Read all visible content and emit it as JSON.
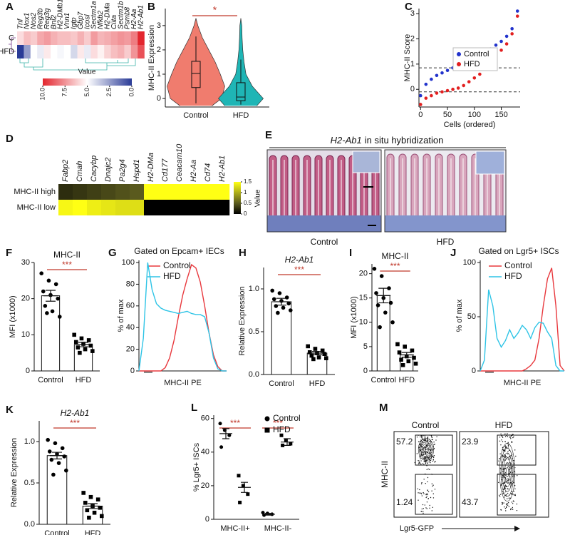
{
  "chart_data": [
    {
      "panel": "A",
      "type": "heatmap",
      "colormap": "red-white-blue",
      "legend_title": "Value",
      "columns": [
        "Tnf",
        "Nox1",
        "Nos2",
        "Reg3b",
        "Reg3g",
        "Bnl2",
        "H2-DMb1",
        "Vnn1",
        "Igtp",
        "Gbp7",
        "Icosl",
        "Sectm1a",
        "Nfkb2",
        "H2-DMa",
        "Ciita",
        "Sectm1b",
        "Psmb8",
        "H2-Aa",
        "H2-Ab1"
      ],
      "rows": [
        "C",
        "HFD"
      ],
      "values": [
        [
          5.8,
          6.5,
          6.2,
          7,
          7.3,
          6.8,
          6.5,
          6.5,
          6.3,
          6.8,
          6.2,
          7.3,
          6.7,
          6.9,
          7.2,
          7.5,
          7.3,
          8,
          10
        ],
        [
          0,
          2.5,
          5,
          4.5,
          5.5,
          5,
          4.8,
          5,
          4,
          5.5,
          4.5,
          5.8,
          5.3,
          6,
          6.5,
          6.8,
          6.2,
          7.5,
          9
        ]
      ],
      "clim": [
        0,
        10
      ],
      "cticks": [
        {
          "value": 10,
          "label": "10.0"
        },
        {
          "value": 7.5,
          "label": "7.5"
        },
        {
          "value": 5,
          "label": "5.0"
        },
        {
          "value": 2.5,
          "label": "2.5"
        },
        {
          "value": 0,
          "label": "0.0"
        }
      ]
    },
    {
      "panel": "B",
      "type": "violin",
      "ylabel": "MHC-II Expression",
      "categories": [
        "Control",
        "HFD"
      ],
      "significance": "*",
      "ylim": [
        -0.35,
        3.7
      ],
      "yticks": [
        0,
        1,
        2,
        3
      ],
      "density_y": [
        -0.3,
        0,
        0.5,
        1,
        1.5,
        2,
        2.5,
        3,
        3.3
      ],
      "series": [
        {
          "name": "Control",
          "color": "#f07c6e",
          "density": [
            25,
            40,
            45,
            38,
            30,
            20,
            10,
            3,
            0
          ],
          "q1": 0.45,
          "median": 1.03,
          "q3": 1.53,
          "whisker_low": -0.2,
          "whisker_high": 2.55
        },
        {
          "name": "HFD",
          "color": "#1fb5b5",
          "density": [
            25,
            35,
            18,
            8,
            5,
            3,
            2,
            1.5,
            0
          ],
          "q1": -0.09,
          "median": 0.06,
          "q3": 0.65,
          "whisker_low": -0.25,
          "whisker_high": 1.6
        }
      ]
    },
    {
      "panel": "C",
      "type": "scatter",
      "ylabel": "MHC-II Score",
      "xlabel": "Cells (ordered)",
      "xlim": [
        -3,
        185
      ],
      "xticks": [
        0,
        50,
        100,
        150
      ],
      "ylim": [
        -0.7,
        3.2
      ],
      "yticks": [
        0,
        1,
        2,
        3
      ],
      "hlines": [
        0.85,
        -0.1
      ],
      "x": [
        0,
        10,
        20,
        30,
        40,
        50,
        60,
        70,
        80,
        90,
        100,
        110,
        120,
        130,
        140,
        150,
        160,
        170,
        180
      ],
      "series": [
        {
          "name": "Control",
          "color": "#2233cc",
          "values": [
            -0.25,
            0.2,
            0.4,
            0.55,
            0.65,
            0.75,
            0.85,
            0.95,
            1.05,
            1.15,
            1.25,
            1.35,
            1.5,
            1.6,
            1.75,
            1.9,
            2.1,
            2.4,
            3.1
          ]
        },
        {
          "name": "HFD",
          "color": "#e21f1f",
          "values": [
            -0.6,
            -0.35,
            -0.25,
            -0.15,
            -0.1,
            -0.05,
            0,
            0.05,
            0.15,
            0.3,
            0.45,
            0.6,
            0.85,
            1.05,
            1.3,
            1.55,
            1.8,
            2.2,
            2.9
          ]
        }
      ]
    },
    {
      "panel": "D",
      "type": "heatmap",
      "colormap": "black-olive-yellow",
      "legend_title": "Value",
      "columns": [
        "Fabp2",
        "Cmah",
        "Cacybp",
        "Dnajc2",
        "Pa2g4",
        "Hspd1",
        "H2-DMa",
        "Cd177",
        "Ceacam10",
        "H2-Aa",
        "Cd74",
        "H2-Ab1"
      ],
      "rows": [
        "MHC-II high",
        "MHC-II low"
      ],
      "values": [
        [
          0.25,
          0.3,
          0.35,
          0.4,
          0.45,
          0.5,
          1.5,
          1.5,
          1.5,
          1.5,
          1.5,
          1.5
        ],
        [
          1.45,
          1.5,
          1.4,
          1.35,
          1.3,
          1.3,
          0,
          0,
          0,
          0,
          0,
          0
        ]
      ],
      "clim": [
        0,
        1.5
      ],
      "cticks": [
        0,
        0.5,
        1,
        1.5
      ]
    },
    {
      "panel": "E",
      "type": "image",
      "title_gene": "H2-Ab1",
      "title_rest": "in situ hybridization",
      "labels": [
        "Control",
        "HFD"
      ]
    },
    {
      "panel": "F",
      "type": "bar",
      "title": "MHC-II",
      "ylabel": "MFI (x1000)",
      "categories": [
        "Control",
        "HFD"
      ],
      "significance": "***",
      "ylim": [
        0,
        30
      ],
      "yticks": [
        0,
        10,
        20,
        30
      ],
      "values": [
        20.8,
        7.3
      ],
      "errors": [
        1.5,
        0.6
      ],
      "markers": [
        "circle",
        "square"
      ],
      "points": [
        [
          27,
          25,
          24,
          22,
          21,
          20,
          18,
          16.5,
          15,
          16
        ],
        [
          10,
          9,
          8.5,
          8,
          7.5,
          7,
          6.5,
          6,
          5.5,
          5
        ]
      ]
    },
    {
      "panel": "G",
      "type": "line",
      "title": "Gated on Epcam+ IECs",
      "ylabel": "% of max",
      "xlabel": "MHC-II PE",
      "xlim": [
        0,
        100
      ],
      "ylim": [
        0,
        102
      ],
      "yticks": [
        0,
        20,
        40,
        60,
        80,
        100
      ],
      "x": [
        0,
        5,
        10,
        15,
        20,
        25,
        30,
        35,
        40,
        45,
        50,
        55,
        60,
        65,
        70,
        75,
        80,
        85,
        90,
        95,
        100
      ],
      "series": [
        {
          "name": "Control",
          "color": "#e8383d",
          "values": [
            0,
            0,
            0,
            0,
            0,
            0,
            3,
            12,
            28,
            50,
            70,
            85,
            98,
            95,
            82,
            60,
            35,
            15,
            4,
            0,
            0
          ]
        },
        {
          "name": "HFD",
          "color": "#2ec4e6",
          "values": [
            0,
            30,
            100,
            75,
            62,
            58,
            56,
            55,
            54,
            53,
            54,
            55,
            53,
            52,
            52,
            50,
            35,
            12,
            2,
            0,
            0
          ]
        }
      ]
    },
    {
      "panel": "H",
      "type": "bar",
      "title": "H2-Ab1",
      "title_style": "italic",
      "ylabel": "Relative Expression",
      "categories": [
        "Control",
        "HFD"
      ],
      "significance": "***",
      "ylim": [
        0,
        1.25
      ],
      "yticks": [
        {
          "value": 0,
          "label": "0.0"
        },
        {
          "value": 0.5,
          "label": "0.5"
        },
        {
          "value": 1,
          "label": "1.0"
        }
      ],
      "values": [
        0.85,
        0.25
      ],
      "errors": [
        0.04,
        0.02
      ],
      "markers": [
        "circle",
        "square"
      ],
      "points": [
        [
          0.98,
          0.95,
          0.9,
          0.88,
          0.86,
          0.83,
          0.8,
          0.78,
          0.75,
          0.72
        ],
        [
          0.33,
          0.3,
          0.28,
          0.26,
          0.25,
          0.24,
          0.22,
          0.2,
          0.19,
          0.18
        ]
      ]
    },
    {
      "panel": "I",
      "type": "bar",
      "title": "MHC-II",
      "ylabel": "MFI (x1000)",
      "categories": [
        "Control",
        "HFD"
      ],
      "significance": "***",
      "ylim": [
        0,
        22
      ],
      "yticks": [
        0,
        5,
        10,
        15,
        20
      ],
      "values": [
        15.5,
        3.3
      ],
      "errors": [
        1.5,
        0.5
      ],
      "markers": [
        "circle",
        "square"
      ],
      "points": [
        [
          21,
          19.5,
          17,
          16,
          15,
          14,
          13.5,
          12,
          10,
          9
        ],
        [
          5.5,
          5,
          4.2,
          3.8,
          3,
          2.7,
          2.3,
          2,
          1.5,
          1.2
        ]
      ]
    },
    {
      "panel": "J",
      "type": "line",
      "title": "Gated on Lgr5+ ISCs",
      "ylabel": "% of max",
      "xlabel": "MHC-II PE",
      "xlim": [
        0,
        100
      ],
      "ylim": [
        0,
        102
      ],
      "yticks": [
        0,
        50,
        100
      ],
      "x": [
        0,
        5,
        10,
        15,
        20,
        25,
        30,
        35,
        40,
        45,
        50,
        55,
        60,
        65,
        70,
        75,
        80,
        85,
        90,
        95,
        100
      ],
      "series": [
        {
          "name": "Control",
          "color": "#e8383d",
          "values": [
            0,
            0,
            0,
            0,
            0,
            0,
            0,
            0,
            0,
            0,
            0,
            2,
            5,
            10,
            30,
            60,
            85,
            95,
            60,
            5,
            0
          ]
        },
        {
          "name": "HFD",
          "color": "#2ec4e6",
          "values": [
            0,
            10,
            75,
            60,
            30,
            22,
            28,
            38,
            30,
            35,
            42,
            38,
            30,
            40,
            45,
            44,
            36,
            30,
            5,
            0,
            0
          ]
        }
      ]
    },
    {
      "panel": "K",
      "type": "bar",
      "title": "H2-Ab1",
      "title_style": "italic",
      "ylabel": "Relative Expression",
      "categories": [
        "Control",
        "HFD"
      ],
      "significance": "***",
      "ylim": [
        0,
        1.25
      ],
      "yticks": [
        {
          "value": 0,
          "label": "0.0"
        },
        {
          "value": 0.5,
          "label": "0.5"
        },
        {
          "value": 1,
          "label": "1.0"
        }
      ],
      "values": [
        0.83,
        0.22
      ],
      "errors": [
        0.04,
        0.03
      ],
      "markers": [
        "circle",
        "square"
      ],
      "points": [
        [
          1.02,
          0.98,
          0.92,
          0.88,
          0.85,
          0.82,
          0.78,
          0.74,
          0.65,
          0.6
        ],
        [
          0.38,
          0.33,
          0.3,
          0.26,
          0.22,
          0.2,
          0.17,
          0.14,
          0.1,
          0.08
        ]
      ]
    },
    {
      "panel": "L",
      "type": "dot",
      "ylabel": "% Lgr5+ ISCs",
      "categories": [
        "MHC-II+",
        "MHC-II-"
      ],
      "significance": [
        "***",
        "***"
      ],
      "ylim": [
        0,
        62
      ],
      "yticks": [
        0,
        20,
        40,
        60
      ],
      "series": [
        {
          "name": "Control",
          "marker": "circle",
          "values": [
            51,
            3
          ],
          "errors": [
            3,
            0.5
          ],
          "points": [
            [
              57,
              53,
              50,
              43
            ],
            [
              4,
              3.5,
              3,
              2.5
            ]
          ]
        },
        {
          "name": "HFD",
          "marker": "square",
          "values": [
            19,
            46
          ],
          "errors": [
            3,
            2
          ],
          "points": [
            [
              26,
              20,
              15,
              10
            ],
            [
              50,
              47,
              45,
              44
            ]
          ]
        }
      ]
    },
    {
      "panel": "M",
      "type": "flow",
      "ylabel": "MHC-II",
      "xlabel": "Lgr5-GFP",
      "panels": [
        {
          "title": "Control",
          "gates": [
            57.2,
            1.24
          ]
        },
        {
          "title": "HFD",
          "gates": [
            23.9,
            43.7
          ]
        }
      ]
    }
  ]
}
